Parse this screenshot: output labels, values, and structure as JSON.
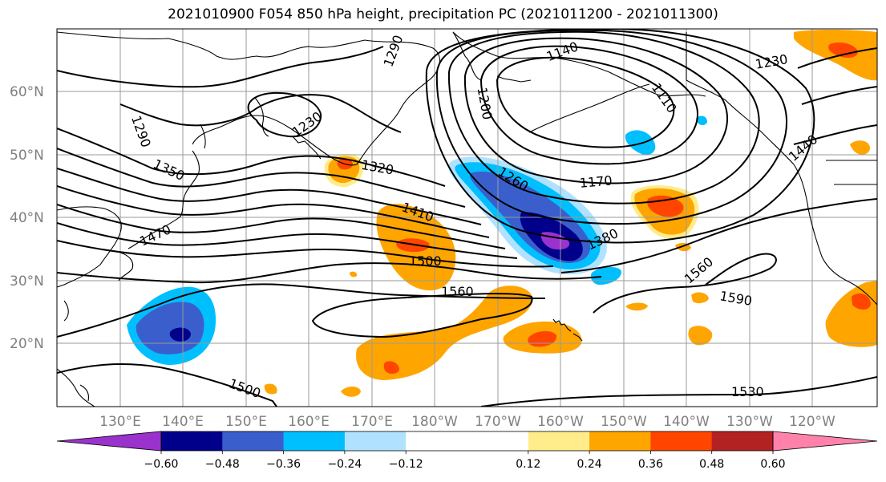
{
  "title": "2021010900 F054 850 hPa height, precipitation PC (2021011200 - 2021011300)",
  "map": {
    "lat_labels": [
      "60°N",
      "50°N",
      "40°N",
      "30°N",
      "20°N"
    ],
    "lon_labels": [
      "130°E",
      "140°E",
      "150°E",
      "160°E",
      "170°E",
      "180°W",
      "170°W",
      "160°W",
      "150°W",
      "140°W",
      "130°W",
      "120°W"
    ],
    "contour_labels": [
      "1290",
      "1230",
      "1290",
      "1140",
      "1230",
      "1200",
      "1110",
      "1440",
      "1350",
      "1320",
      "1170",
      "1260",
      "1410",
      "1380",
      "1470",
      "1500",
      "1560",
      "1560",
      "1590",
      "1500",
      "1530"
    ],
    "colors": {
      "land_outline": "#000000",
      "grid": "#9a9a9a",
      "contour": "#000000"
    }
  },
  "colorbar": {
    "colors": [
      "#9a32cd",
      "#00008b",
      "#3a5fcd",
      "#00bfff",
      "#b0e2ff",
      "#ffffff",
      "#ffffff",
      "#ffec8b",
      "#ffa500",
      "#ff4500",
      "#b22222",
      "#ff82ab"
    ],
    "tick_labels": [
      "−0.60",
      "−0.48",
      "−0.36",
      "−0.24",
      "−0.12",
      "0.12",
      "0.24",
      "0.36",
      "0.48",
      "0.60"
    ]
  }
}
